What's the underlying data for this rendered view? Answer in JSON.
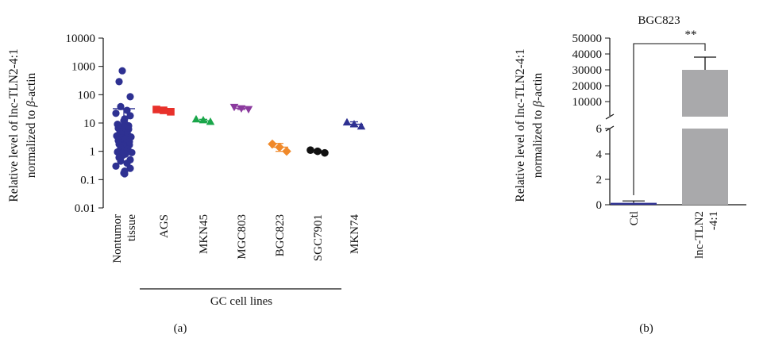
{
  "chart_data": [
    {
      "panel_label": "(a)",
      "type": "scatter",
      "y_scale": "log",
      "ylabel_line1": "Relative level of lnc-TLN2-4:1",
      "ylabel_line2_prefix": "normalized to ",
      "ylabel_line2_greek": "β",
      "ylabel_line2_suffix": "-actin",
      "ylim": [
        0.01,
        10000
      ],
      "yticks": [
        "0.01",
        "0.1",
        "1",
        "10",
        "100",
        "1000",
        "10000"
      ],
      "categories": [
        "Nontumor tissue",
        "AGS",
        "MKN45",
        "MGC803",
        "BGC823",
        "SGC7901",
        "MKN74"
      ],
      "category_lines": [
        [
          "Nontumor",
          "tissue"
        ],
        [
          "AGS"
        ],
        [
          "MKN45"
        ],
        [
          "MGC803"
        ],
        [
          "BGC823"
        ],
        [
          "SGC7901"
        ],
        [
          "MKN74"
        ]
      ],
      "group_label": "GC cell lines",
      "series": [
        {
          "category": "Nontumor tissue",
          "marker": "circle",
          "color": "#2e3192",
          "mean": 32,
          "error": [
            4,
            30
          ],
          "values": [
            700,
            290,
            85,
            38,
            28,
            22,
            18,
            14,
            12,
            10,
            9,
            8,
            7.5,
            7,
            6.5,
            6,
            5.5,
            5,
            5,
            4.6,
            4.3,
            4,
            3.8,
            3.5,
            3.2,
            3,
            2.8,
            2.6,
            2.4,
            2.2,
            2,
            1.9,
            1.8,
            1.7,
            1.6,
            1.5,
            1.4,
            1.3,
            1.2,
            1.1,
            1,
            0.95,
            0.9,
            0.85,
            0.8,
            0.7,
            0.6,
            0.5,
            0.45,
            0.38,
            0.3,
            0.25,
            0.2,
            0.17,
            0.16
          ]
        },
        {
          "category": "AGS",
          "marker": "square",
          "color": "#e8312b",
          "mean": 28,
          "error": [
            25,
            31
          ],
          "values": [
            30,
            28,
            25
          ]
        },
        {
          "category": "MKN45",
          "marker": "triangle-up",
          "color": "#1aa64a",
          "mean": 12,
          "error": [
            11,
            13.5
          ],
          "values": [
            13.5,
            12.5,
            11
          ]
        },
        {
          "category": "MGC803",
          "marker": "triangle-down",
          "color": "#8b3a9e",
          "mean": 33,
          "error": [
            30,
            37
          ],
          "values": [
            37,
            33,
            31
          ]
        },
        {
          "category": "BGC823",
          "marker": "diamond",
          "color": "#f0892a",
          "mean": 1.4,
          "error": [
            1.0,
            1.9
          ],
          "values": [
            1.8,
            1.4,
            1.0
          ]
        },
        {
          "category": "SGC7901",
          "marker": "circle",
          "color": "#111111",
          "mean": 1.0,
          "error": [
            0.88,
            1.1
          ],
          "values": [
            1.1,
            1.0,
            0.88
          ]
        },
        {
          "category": "MKN74",
          "marker": "triangle-up",
          "color": "#2e3192",
          "mean": 9,
          "error": [
            7.5,
            11
          ],
          "values": [
            10.5,
            9,
            7.5
          ]
        }
      ]
    },
    {
      "panel_label": "(b)",
      "type": "bar",
      "title": "BGC823",
      "ylabel_line1": "Relative level of lnc-TLN2-4:1",
      "ylabel_line2_prefix": "normalized to ",
      "ylabel_line2_greek": "β",
      "ylabel_line2_suffix": "-actin",
      "y_axis": "broken",
      "lower_segment": {
        "ylim": [
          0,
          6
        ],
        "yticks": [
          "0",
          "2",
          "4",
          "6"
        ]
      },
      "upper_segment": {
        "ylim": [
          0,
          50000
        ],
        "yticks": [
          "10000",
          "20000",
          "30000",
          "40000",
          "50000"
        ]
      },
      "categories": [
        "Ctl",
        "lnc-TLN2-4:1"
      ],
      "category_lines": [
        [
          "Ctl"
        ],
        [
          "lnc-TLN2",
          "-4:1"
        ]
      ],
      "values": [
        0.15,
        30000
      ],
      "errors": [
        0.15,
        8000
      ],
      "bar_colors": [
        "#2e3192",
        "#a9a9ab"
      ],
      "significance": "**"
    }
  ]
}
